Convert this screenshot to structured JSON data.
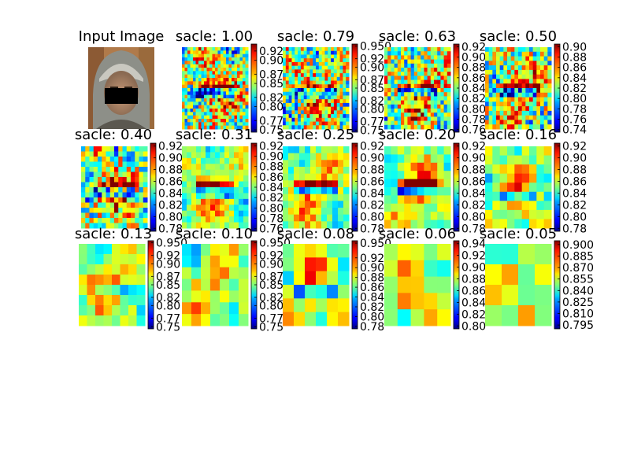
{
  "figure": {
    "input_title": "Input Image"
  },
  "chart_data": [
    {
      "type": "heatmap",
      "title": "sacle: 1.00",
      "colormap": "jet",
      "colorbar_ticks": [
        "0.92",
        "0.90",
        "0.87",
        "0.85",
        "0.82",
        "0.80",
        "0.77",
        "0.75"
      ],
      "value_range": [
        0.745,
        0.935
      ]
    },
    {
      "type": "heatmap",
      "title": "sacle: 0.79",
      "colormap": "jet",
      "colorbar_ticks": [
        "0.950",
        "0.92",
        "0.90",
        "0.87",
        "0.85",
        "0.82",
        "0.80",
        "0.77",
        "0.75"
      ],
      "value_range": [
        0.745,
        0.955
      ]
    },
    {
      "type": "heatmap",
      "title": "sacle: 0.63",
      "colormap": "jet",
      "colorbar_ticks": [
        "0.92",
        "0.90",
        "0.88",
        "0.86",
        "0.84",
        "0.82",
        "0.80",
        "0.78",
        "0.76"
      ],
      "value_range": [
        0.755,
        0.925
      ]
    },
    {
      "type": "heatmap",
      "title": "sacle: 0.50",
      "colormap": "jet",
      "colorbar_ticks": [
        "0.90",
        "0.88",
        "0.86",
        "0.84",
        "0.82",
        "0.80",
        "0.78",
        "0.76",
        "0.74"
      ],
      "value_range": [
        0.735,
        0.905
      ]
    },
    {
      "type": "heatmap",
      "title": "sacle: 0.40",
      "colormap": "jet",
      "colorbar_ticks": [
        "0.92",
        "0.90",
        "0.88",
        "0.86",
        "0.84",
        "0.82",
        "0.80",
        "0.78"
      ],
      "value_range": [
        0.775,
        0.925
      ]
    },
    {
      "type": "heatmap",
      "title": "sacle: 0.31",
      "colormap": "jet",
      "colorbar_ticks": [
        "0.92",
        "0.90",
        "0.88",
        "0.86",
        "0.84",
        "0.82",
        "0.80",
        "0.78",
        "0.76"
      ],
      "value_range": [
        0.755,
        0.925
      ]
    },
    {
      "type": "heatmap",
      "title": "sacle: 0.25",
      "colormap": "jet",
      "colorbar_ticks": [
        "0.92",
        "0.90",
        "0.88",
        "0.86",
        "0.84",
        "0.82",
        "0.80",
        "0.78"
      ],
      "value_range": [
        0.775,
        0.925
      ]
    },
    {
      "type": "heatmap",
      "title": "sacle: 0.20",
      "colormap": "jet",
      "colorbar_ticks": [
        "0.92",
        "0.90",
        "0.88",
        "0.86",
        "0.84",
        "0.82",
        "0.80",
        "0.78"
      ],
      "value_range": [
        0.775,
        0.925
      ]
    },
    {
      "type": "heatmap",
      "title": "sacle: 0.16",
      "colormap": "jet",
      "colorbar_ticks": [
        "0.92",
        "0.90",
        "0.88",
        "0.86",
        "0.84",
        "0.82",
        "0.80",
        "0.78"
      ],
      "value_range": [
        0.775,
        0.925
      ]
    },
    {
      "type": "heatmap",
      "title": "sacle: 0.13",
      "colormap": "jet",
      "colorbar_ticks": [
        "0.950",
        "0.92",
        "0.90",
        "0.87",
        "0.85",
        "0.82",
        "0.80",
        "0.77",
        "0.75"
      ],
      "value_range": [
        0.745,
        0.955
      ]
    },
    {
      "type": "heatmap",
      "title": "sacle: 0.10",
      "colormap": "jet",
      "colorbar_ticks": [
        "0.950",
        "0.92",
        "0.90",
        "0.87",
        "0.85",
        "0.82",
        "0.80",
        "0.77",
        "0.75"
      ],
      "value_range": [
        0.745,
        0.955
      ]
    },
    {
      "type": "heatmap",
      "title": "sacle: 0.08",
      "colormap": "jet",
      "colorbar_ticks": [
        "0.950",
        "0.92",
        "0.90",
        "0.88",
        "0.86",
        "0.84",
        "0.82",
        "0.80",
        "0.78"
      ],
      "value_range": [
        0.775,
        0.955
      ]
    },
    {
      "type": "heatmap",
      "title": "sacle: 0.06",
      "colormap": "jet",
      "colorbar_ticks": [
        "0.94",
        "0.92",
        "0.90",
        "0.88",
        "0.86",
        "0.84",
        "0.82",
        "0.80"
      ],
      "value_range": [
        0.795,
        0.945
      ]
    },
    {
      "type": "heatmap",
      "title": "sacle: 0.05",
      "colormap": "jet",
      "colorbar_ticks": [
        "0.900",
        "0.885",
        "0.870",
        "0.855",
        "0.840",
        "0.825",
        "0.810",
        "0.795"
      ],
      "value_range": [
        0.79,
        0.905
      ]
    }
  ]
}
